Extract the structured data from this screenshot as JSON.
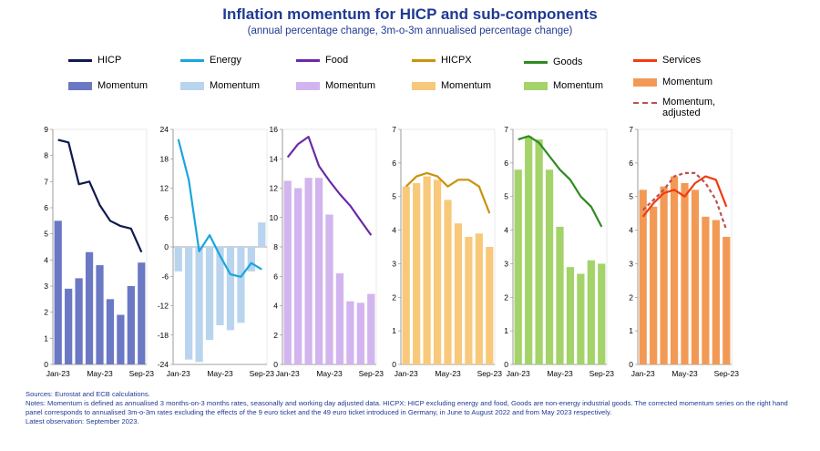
{
  "title": "Inflation momentum for HICP and sub-components",
  "subtitle": "(annual percentage change, 3m-o-3m annualised percentage change)",
  "legend": [
    {
      "label": "HICP",
      "kind": "line",
      "color": "#0e1a4f"
    },
    {
      "label": "Momentum",
      "kind": "bar",
      "color": "#6b78c4"
    },
    {
      "label": "Energy",
      "kind": "line",
      "color": "#1aa5e0"
    },
    {
      "label": "Momentum",
      "kind": "bar",
      "color": "#b9d4ee"
    },
    {
      "label": "Food",
      "kind": "line",
      "color": "#6a2aa8"
    },
    {
      "label": "Momentum",
      "kind": "bar",
      "color": "#d2b4ee"
    },
    {
      "label": "HICPX",
      "kind": "line",
      "color": "#c9930c"
    },
    {
      "label": "Momentum",
      "kind": "bar",
      "color": "#f8c97a"
    },
    {
      "label": "Goods",
      "kind": "line",
      "color": "#2e8b1f"
    },
    {
      "label": "Momentum",
      "kind": "bar",
      "color": "#a4d36a"
    },
    {
      "label": "Services",
      "kind": "line",
      "color": "#f03c12"
    },
    {
      "label": "Momentum",
      "kind": "bar",
      "color": "#f29a55"
    },
    {
      "label": "Momentum, adjusted",
      "kind": "dashed",
      "color": "#c0504d"
    }
  ],
  "chart_data": [
    {
      "type": "bar+line",
      "categories": [
        "Jan-23",
        "Feb-23",
        "Mar-23",
        "Apr-23",
        "May-23",
        "Jun-23",
        "Jul-23",
        "Aug-23",
        "Sep-23"
      ],
      "xticks": [
        "Jan-23",
        "May-23",
        "Sep-23"
      ],
      "ylim": [
        0,
        9
      ],
      "yticks": [
        0,
        1,
        2,
        3,
        4,
        5,
        6,
        7,
        8,
        9
      ],
      "series": [
        {
          "name": "HICP",
          "type": "line",
          "color": "#0e1a4f",
          "values": [
            8.6,
            8.5,
            6.9,
            7.0,
            6.1,
            5.5,
            5.3,
            5.2,
            4.3
          ]
        },
        {
          "name": "Momentum",
          "type": "bar",
          "color": "#6b78c4",
          "values": [
            5.5,
            2.9,
            3.3,
            4.3,
            3.8,
            2.5,
            1.9,
            3.0,
            3.9
          ]
        }
      ]
    },
    {
      "type": "bar+line",
      "categories": [
        "Jan-23",
        "Feb-23",
        "Mar-23",
        "Apr-23",
        "May-23",
        "Jun-23",
        "Jul-23",
        "Aug-23",
        "Sep-23"
      ],
      "xticks": [
        "Jan-23",
        "May-23",
        "Sep-23"
      ],
      "ylim": [
        -24,
        24
      ],
      "yticks": [
        -24,
        -18,
        -12,
        -6,
        0,
        6,
        12,
        18,
        24
      ],
      "series": [
        {
          "name": "Energy",
          "type": "line",
          "color": "#1aa5e0",
          "values": [
            22.0,
            13.7,
            -0.9,
            2.4,
            -1.8,
            -5.6,
            -6.1,
            -3.3,
            -4.6
          ]
        },
        {
          "name": "Momentum",
          "type": "bar",
          "color": "#b9d4ee",
          "values": [
            -5.0,
            -23.0,
            -23.5,
            -19.0,
            -16.0,
            -17.0,
            -15.5,
            -5.0,
            5.0
          ]
        }
      ]
    },
    {
      "type": "bar+line",
      "categories": [
        "Jan-23",
        "Feb-23",
        "Mar-23",
        "Apr-23",
        "May-23",
        "Jun-23",
        "Jul-23",
        "Aug-23",
        "Sep-23"
      ],
      "xticks": [
        "Jan-23",
        "May-23",
        "Sep-23"
      ],
      "ylim": [
        0,
        16
      ],
      "yticks": [
        0,
        2,
        4,
        6,
        8,
        10,
        12,
        14,
        16
      ],
      "series": [
        {
          "name": "Food",
          "type": "line",
          "color": "#6a2aa8",
          "values": [
            14.1,
            15.0,
            15.5,
            13.5,
            12.5,
            11.6,
            10.8,
            9.8,
            8.8
          ]
        },
        {
          "name": "Momentum",
          "type": "bar",
          "color": "#d2b4ee",
          "values": [
            12.5,
            12.0,
            12.7,
            12.7,
            10.2,
            6.2,
            4.3,
            4.2,
            4.8
          ]
        }
      ]
    },
    {
      "type": "bar+line",
      "categories": [
        "Jan-23",
        "Feb-23",
        "Mar-23",
        "Apr-23",
        "May-23",
        "Jun-23",
        "Jul-23",
        "Aug-23",
        "Sep-23"
      ],
      "xticks": [
        "Jan-23",
        "May-23",
        "Sep-23"
      ],
      "ylim": [
        0,
        7
      ],
      "yticks": [
        0,
        1,
        2,
        3,
        4,
        5,
        6,
        7
      ],
      "series": [
        {
          "name": "HICPX",
          "type": "line",
          "color": "#c9930c",
          "values": [
            5.3,
            5.6,
            5.7,
            5.6,
            5.3,
            5.5,
            5.5,
            5.3,
            4.5
          ]
        },
        {
          "name": "Momentum",
          "type": "bar",
          "color": "#f8c97a",
          "values": [
            5.3,
            5.4,
            5.6,
            5.5,
            4.9,
            4.2,
            3.8,
            3.9,
            3.5
          ]
        }
      ]
    },
    {
      "type": "bar+line",
      "categories": [
        "Jan-23",
        "Feb-23",
        "Mar-23",
        "Apr-23",
        "May-23",
        "Jun-23",
        "Jul-23",
        "Aug-23",
        "Sep-23"
      ],
      "xticks": [
        "Jan-23",
        "May-23",
        "Sep-23"
      ],
      "ylim": [
        0,
        7
      ],
      "yticks": [
        0,
        1,
        2,
        3,
        4,
        5,
        6,
        7
      ],
      "series": [
        {
          "name": "Goods",
          "type": "line",
          "color": "#2e8b1f",
          "values": [
            6.7,
            6.8,
            6.6,
            6.2,
            5.8,
            5.5,
            5.0,
            4.7,
            4.1
          ]
        },
        {
          "name": "Momentum",
          "type": "bar",
          "color": "#a4d36a",
          "values": [
            5.8,
            6.8,
            6.7,
            5.8,
            4.1,
            2.9,
            2.7,
            3.1,
            3.0
          ]
        }
      ]
    },
    {
      "type": "bar+line",
      "categories": [
        "Jan-23",
        "Feb-23",
        "Mar-23",
        "Apr-23",
        "May-23",
        "Jun-23",
        "Jul-23",
        "Aug-23",
        "Sep-23"
      ],
      "xticks": [
        "Jan-23",
        "May-23",
        "Sep-23"
      ],
      "ylim": [
        0,
        7
      ],
      "yticks": [
        0,
        1,
        2,
        3,
        4,
        5,
        6,
        7
      ],
      "series": [
        {
          "name": "Services",
          "type": "line",
          "color": "#f03c12",
          "values": [
            4.4,
            4.8,
            5.1,
            5.2,
            5.0,
            5.4,
            5.6,
            5.5,
            4.7
          ]
        },
        {
          "name": "Momentum",
          "type": "bar",
          "color": "#f29a55",
          "values": [
            5.2,
            4.7,
            5.3,
            5.6,
            5.4,
            5.2,
            4.4,
            4.3,
            3.8
          ]
        },
        {
          "name": "Momentum, adjusted",
          "type": "dashed",
          "color": "#c0504d",
          "values": [
            4.6,
            4.9,
            5.2,
            5.6,
            5.7,
            5.7,
            5.4,
            4.9,
            4.0
          ]
        }
      ]
    }
  ],
  "notes": [
    "Sources: Eurostat and ECB calculations.",
    "Notes: Momentum is defined as annualised 3 months-on-3 months rates, seasonally and working day adjusted data. HICPX: HICP excluding energy and food, Goods are non-energy industrial goods. The corrected momentum series on the right hand panel corresponds to annualised 3m-o-3m rates excluding the effects of the 9 euro ticket and the 49 euro ticket introduced in Germany, in June to August 2022 and from May 2023 respectively.",
    "Latest observation: September 2023."
  ]
}
